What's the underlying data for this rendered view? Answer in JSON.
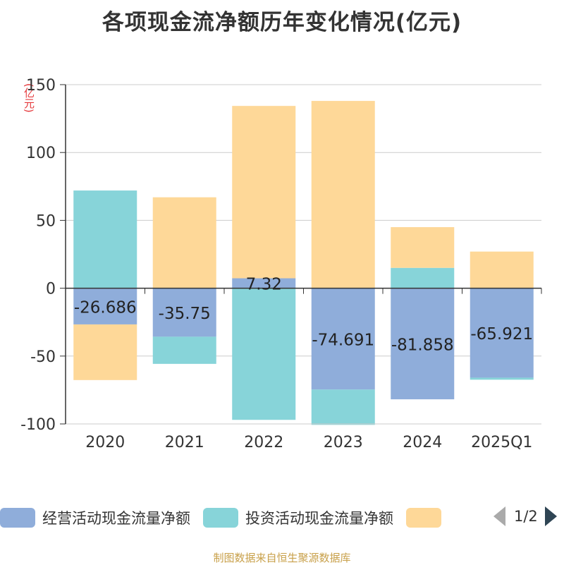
{
  "title": "各项现金流净额历年变化情况(亿元)",
  "unit": "(亿元)",
  "source": "制图数据来自恒生聚源数据库",
  "legend": {
    "items": [
      {
        "label": "经营活动现金流量净额",
        "color": "#8fadda"
      },
      {
        "label": "投资活动现金流量净额",
        "color": "#87d4d9"
      },
      {
        "label": "",
        "color": "#fed898"
      }
    ],
    "page": "1/2"
  },
  "chart_data": {
    "type": "bar",
    "stacked": true,
    "categories": [
      "2020",
      "2021",
      "2022",
      "2023",
      "2024",
      "2025Q1"
    ],
    "ylim": [
      -100,
      150
    ],
    "yticks": [
      -100,
      -50,
      0,
      50,
      100,
      150
    ],
    "grid": true,
    "legend_position": "bottom",
    "series": [
      {
        "name": "经营活动现金流量净额",
        "color": "#8fadda",
        "values": [
          -26.686,
          -35.75,
          7.32,
          -74.691,
          -81.858,
          -65.921
        ],
        "labels": [
          "-26.686",
          "-35.75",
          "7.32",
          "-74.691",
          "-81.858",
          "-65.921"
        ]
      },
      {
        "name": "投资活动现金流量净额",
        "color": "#87d4d9",
        "values": [
          72,
          -20,
          -97,
          -26,
          15,
          -1.5
        ]
      },
      {
        "color": "#fed898",
        "values": [
          -41,
          67,
          127,
          138,
          30,
          27
        ]
      }
    ]
  }
}
